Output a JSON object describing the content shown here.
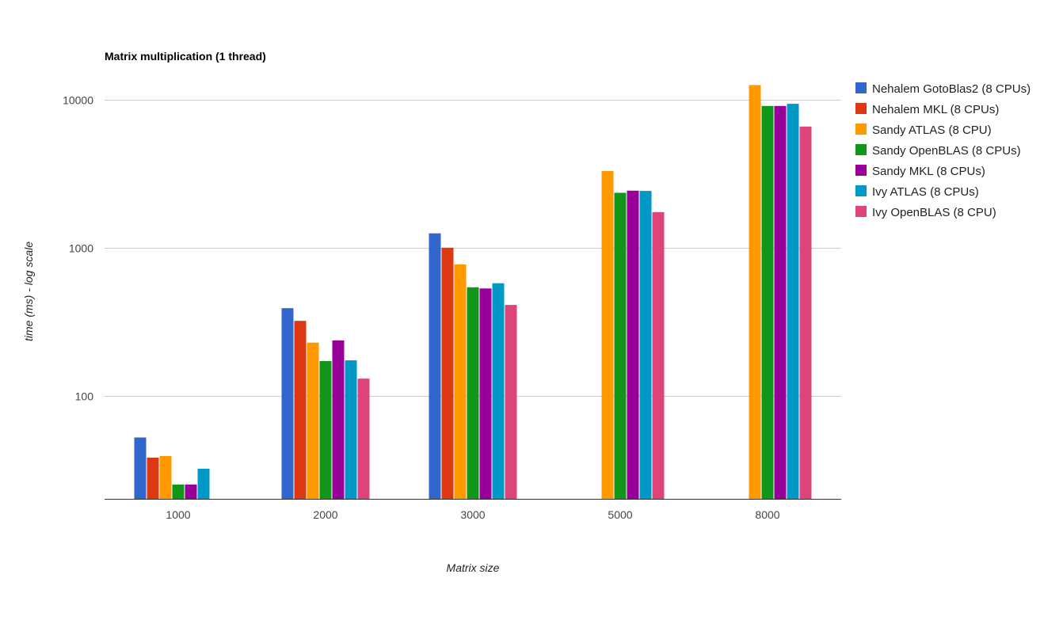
{
  "chart_data": {
    "type": "bar",
    "title": "Matrix multiplication (1 thread)",
    "xlabel": "Matrix size",
    "ylabel": "time (ms) - log scale",
    "yscale": "log",
    "ylim": [
      20,
      16000
    ],
    "yticks": [
      100,
      1000,
      10000
    ],
    "grid": true,
    "legend_position": "right",
    "categories": [
      "1000",
      "2000",
      "3000",
      "5000",
      "8000"
    ],
    "series": [
      {
        "name": "Nehalem GotoBlas2 (8 CPUs)",
        "color": "#3366cc",
        "values": [
          52,
          390,
          1250,
          null,
          null
        ]
      },
      {
        "name": "Nehalem MKL (8 CPUs)",
        "color": "#dc3912",
        "values": [
          38,
          320,
          1000,
          null,
          null
        ]
      },
      {
        "name": "Sandy ATLAS (8 CPU)",
        "color": "#ff9900",
        "values": [
          39,
          228,
          770,
          3300,
          12600
        ]
      },
      {
        "name": "Sandy OpenBLAS (8 CPUs)",
        "color": "#109618",
        "values": [
          25,
          171,
          540,
          2350,
          9100
        ]
      },
      {
        "name": "Sandy MKL (8 CPUs)",
        "color": "#990099",
        "values": [
          25,
          236,
          530,
          2430,
          9100
        ]
      },
      {
        "name": "Ivy ATLAS (8 CPUs)",
        "color": "#0099c6",
        "values": [
          32,
          173,
          575,
          2420,
          9400
        ]
      },
      {
        "name": "Ivy OpenBLAS (8 CPU)",
        "color": "#dd4477",
        "values": [
          20,
          130,
          410,
          1740,
          6600
        ]
      }
    ]
  }
}
